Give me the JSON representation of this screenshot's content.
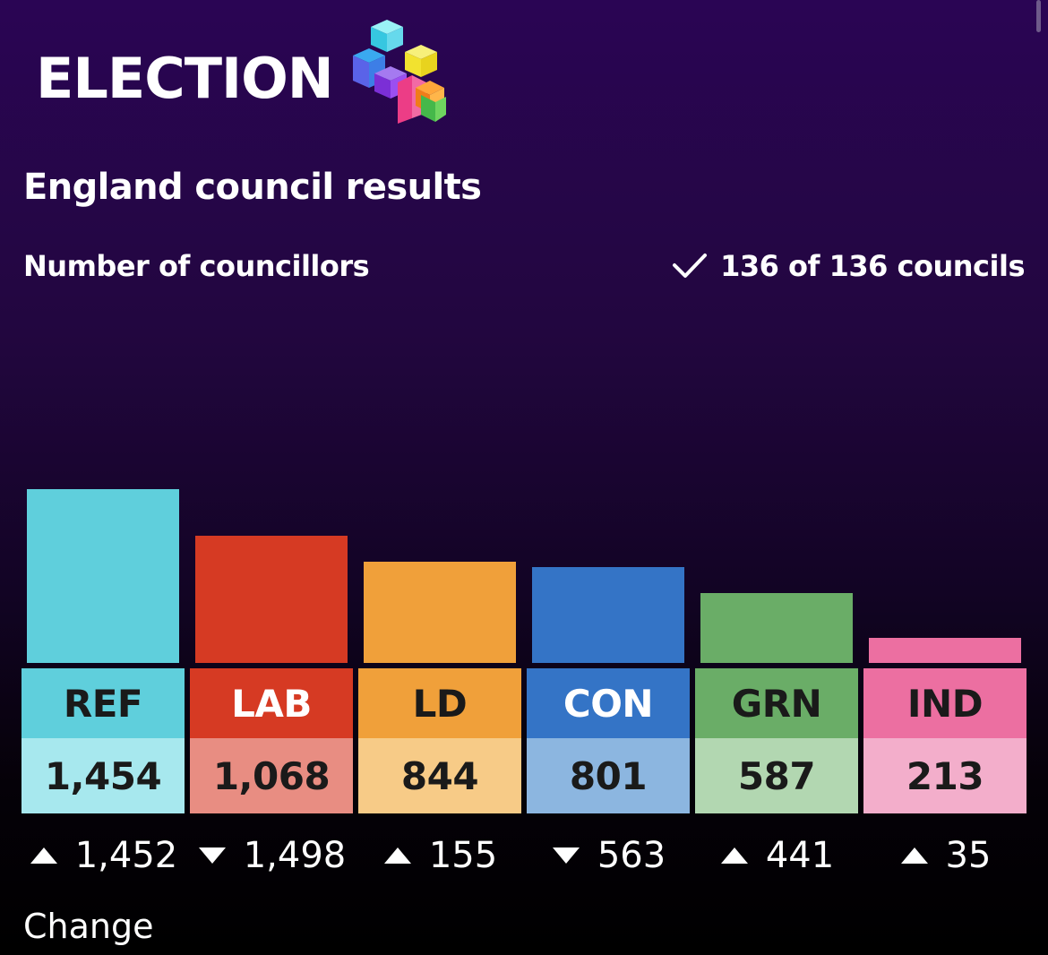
{
  "header": {
    "brand": "ELECTION",
    "logo": "election-cubes-logo",
    "title": "England council results",
    "subtitle": "Number of councillors",
    "status_text": "136 of 136 councils",
    "status_icon": "check-icon"
  },
  "change_caption": "Change",
  "chart_data": {
    "type": "bar",
    "title": "England council results",
    "ylabel": "Number of councillors",
    "categories": [
      "REF",
      "LAB",
      "LD",
      "CON",
      "GRN",
      "IND"
    ],
    "values": [
      1454,
      1068,
      844,
      801,
      587,
      213
    ],
    "value_labels": [
      "1,454",
      "1,068",
      "844",
      "801",
      "587",
      "213"
    ],
    "change": [
      {
        "direction": "up",
        "label": "1,452"
      },
      {
        "direction": "down",
        "label": "1,498"
      },
      {
        "direction": "up",
        "label": "155"
      },
      {
        "direction": "down",
        "label": "563"
      },
      {
        "direction": "up",
        "label": "441"
      },
      {
        "direction": "up",
        "label": "35"
      }
    ],
    "colors": {
      "bar": [
        "#5fcfdc",
        "#d63a23",
        "#f0a03a",
        "#3474c6",
        "#6aad67",
        "#ec6fa1"
      ],
      "label_bg": [
        "#5fcfdc",
        "#d63a23",
        "#f0a03a",
        "#3474c6",
        "#6aad67",
        "#ec6fa1"
      ],
      "label_text": [
        "#1a1a1a",
        "#ffffff",
        "#1a1a1a",
        "#ffffff",
        "#1a1a1a",
        "#1a1a1a"
      ],
      "value_bg": [
        "#a7e8ee",
        "#e88d82",
        "#f7cb87",
        "#8cb6e0",
        "#b2d7b1",
        "#f3aecb"
      ]
    }
  }
}
